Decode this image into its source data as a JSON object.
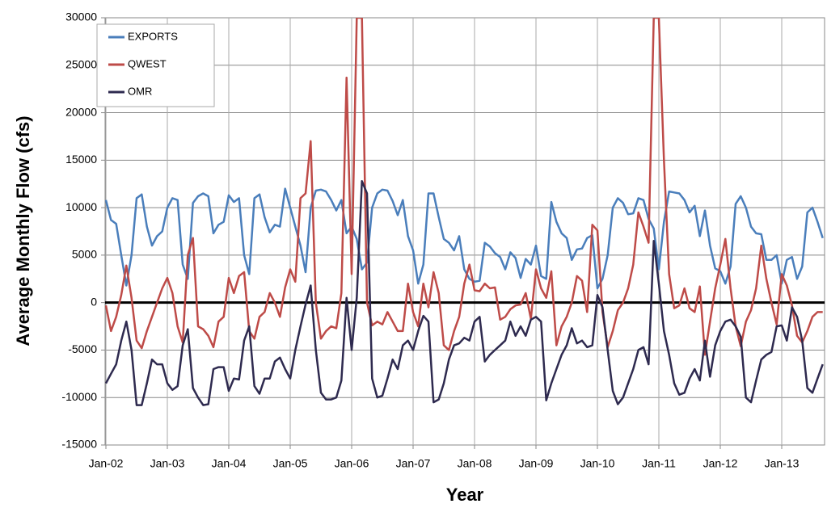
{
  "chart_data": {
    "type": "line",
    "xlabel": "Year",
    "ylabel": "Average Monthly Flow (cfs)",
    "categories": [
      "Jan-02",
      null,
      null,
      null,
      null,
      null,
      null,
      null,
      null,
      null,
      null,
      null,
      "Jan-03",
      null,
      null,
      null,
      null,
      null,
      null,
      null,
      null,
      null,
      null,
      null,
      "Jan-04",
      null,
      null,
      null,
      null,
      null,
      null,
      null,
      null,
      null,
      null,
      null,
      "Jan-05",
      null,
      null,
      null,
      null,
      null,
      null,
      null,
      null,
      null,
      null,
      null,
      "Jan-06",
      null,
      null,
      null,
      null,
      null,
      null,
      null,
      null,
      null,
      null,
      null,
      "Jan-07",
      null,
      null,
      null,
      null,
      null,
      null,
      null,
      null,
      null,
      null,
      null,
      "Jan-08",
      null,
      null,
      null,
      null,
      null,
      null,
      null,
      null,
      null,
      null,
      null,
      "Jan-09",
      null,
      null,
      null,
      null,
      null,
      null,
      null,
      null,
      null,
      null,
      null,
      "Jan-10",
      null,
      null,
      null,
      null,
      null,
      null,
      null,
      null,
      null,
      null,
      null,
      "Jan-11",
      null,
      null,
      null,
      null,
      null,
      null,
      null,
      null,
      null,
      null,
      null,
      "Jan-12",
      null,
      null,
      null,
      null,
      null,
      null,
      null,
      null,
      null,
      null,
      null,
      "Jan-13",
      null,
      null,
      null,
      null,
      null,
      null,
      null,
      null
    ],
    "series": [
      {
        "name": "EXPORTS",
        "color": "#4a7ebb",
        "values": [
          10800,
          8700,
          8300,
          5000,
          1800,
          5000,
          11000,
          11400,
          8000,
          6000,
          7000,
          7500,
          10000,
          11000,
          10800,
          4000,
          2500,
          10500,
          11200,
          11500,
          11200,
          7300,
          8200,
          8500,
          11300,
          10600,
          11000,
          5000,
          3000,
          11000,
          11400,
          9000,
          7400,
          8200,
          8000,
          12000,
          10000,
          8000,
          6000,
          3200,
          10000,
          11800,
          11900,
          11700,
          10800,
          9700,
          10800,
          7300,
          8000,
          6700,
          3500,
          4200,
          10000,
          11500,
          11900,
          11800,
          10700,
          9200,
          10800,
          7000,
          5500,
          2000,
          4000,
          11500,
          11500,
          9000,
          6700,
          6300,
          5500,
          7000,
          3500,
          2500,
          2200,
          2300,
          6300,
          5900,
          5200,
          4800,
          3500,
          5300,
          4700,
          2600,
          4600,
          4000,
          6000,
          2800,
          2500,
          10600,
          8500,
          7300,
          6800,
          4500,
          5600,
          5700,
          6800,
          7100,
          1500,
          2500,
          5000,
          10000,
          11000,
          10500,
          9300,
          9400,
          11000,
          10800,
          8800,
          7800,
          3500,
          8500,
          11700,
          11600,
          11500,
          10800,
          9500,
          10200,
          7000,
          9700,
          6000,
          3600,
          3300,
          2000,
          3800,
          10400,
          11200,
          10000,
          8000,
          7300,
          7200,
          4500,
          4500,
          5000,
          2000,
          4500,
          4800,
          2500,
          3800,
          9500,
          10000,
          8500,
          6800
        ]
      },
      {
        "name": "QWEST",
        "color": "#be4b48",
        "values": [
          -300,
          -3000,
          -1500,
          800,
          3900,
          500,
          -4000,
          -4800,
          -3000,
          -1500,
          0,
          1500,
          2600,
          1000,
          -2500,
          -4200,
          5000,
          6800,
          -2500,
          -2800,
          -3500,
          -4700,
          -2000,
          -1500,
          2600,
          1000,
          2800,
          3200,
          -3000,
          -3800,
          -1500,
          -1000,
          1000,
          0,
          -1500,
          1600,
          3500,
          2200,
          11000,
          11500,
          17000,
          0,
          -3800,
          -3000,
          -2500,
          -2700,
          1000,
          23700,
          3000,
          30000,
          30000,
          0,
          -2400,
          -2000,
          -2300,
          -1000,
          -2000,
          -3000,
          -3000,
          2000,
          -1000,
          -2500,
          2000,
          -500,
          3200,
          1000,
          -4500,
          -5000,
          -3000,
          -1500,
          2000,
          4000,
          1300,
          1200,
          2000,
          1500,
          1600,
          -1800,
          -1500,
          -700,
          -300,
          -200,
          1000,
          -1700,
          3500,
          1500,
          500,
          3300,
          -4500,
          -2500,
          -1500,
          0,
          2800,
          2300,
          -1000,
          8200,
          7600,
          -1000,
          -4700,
          -3000,
          -800,
          0,
          1500,
          4000,
          9500,
          8000,
          6300,
          30000,
          30000,
          15000,
          3000,
          -600,
          -300,
          1500,
          -600,
          -1000,
          1700,
          -5500,
          -2000,
          1500,
          4000,
          6700,
          1500,
          -2500,
          -4600,
          -2000,
          -800,
          1500,
          6000,
          2500,
          0,
          -2300,
          3000,
          1800,
          -300,
          -3500,
          -4200,
          -3000,
          -1500,
          -1000,
          -1000
        ]
      },
      {
        "name": "OMR",
        "color": "#2e2a4f",
        "values": [
          -8500,
          -7500,
          -6500,
          -4000,
          -2000,
          -5000,
          -10800,
          -10800,
          -8500,
          -6000,
          -6500,
          -6500,
          -8500,
          -9200,
          -8800,
          -4500,
          -2800,
          -9000,
          -10000,
          -10800,
          -10700,
          -7000,
          -6800,
          -6800,
          -9300,
          -8000,
          -8100,
          -4000,
          -2500,
          -8800,
          -9600,
          -8000,
          -8000,
          -6200,
          -5800,
          -7000,
          -8000,
          -5000,
          -2500,
          -200,
          1800,
          -5000,
          -9500,
          -10200,
          -10200,
          -10000,
          -8200,
          500,
          -5000,
          500,
          12800,
          11500,
          -8000,
          -10000,
          -9800,
          -8000,
          -6000,
          -7000,
          -4500,
          -4000,
          -5000,
          -3000,
          -1400,
          -2000,
          -10500,
          -10200,
          -8500,
          -6000,
          -4500,
          -4300,
          -3700,
          -4000,
          -2000,
          -1500,
          -6200,
          -5500,
          -5000,
          -4500,
          -4000,
          -2000,
          -3500,
          -2500,
          -3500,
          -1800,
          -1500,
          -2000,
          -10300,
          -8500,
          -7000,
          -5500,
          -4500,
          -2700,
          -4300,
          -4000,
          -4700,
          -4500,
          800,
          -500,
          -5000,
          -9300,
          -10700,
          -10000,
          -8500,
          -7000,
          -5000,
          -4700,
          -6500,
          6500,
          2000,
          -3000,
          -5500,
          -8500,
          -9700,
          -9500,
          -8000,
          -7000,
          -8200,
          -4000,
          -7800,
          -4500,
          -3000,
          -2000,
          -1800,
          -2500,
          -3600,
          -10000,
          -10500,
          -8200,
          -6000,
          -5500,
          -5200,
          -2500,
          -2400,
          -4000,
          -500,
          -1500,
          -4000,
          -9000,
          -9500,
          -8000,
          -6500
        ]
      }
    ],
    "ylim": [
      -15000,
      30000
    ],
    "yticks": [
      -15000,
      -10000,
      -5000,
      0,
      5000,
      10000,
      15000,
      20000,
      25000,
      30000
    ],
    "grid": true,
    "legend": "upper left"
  }
}
